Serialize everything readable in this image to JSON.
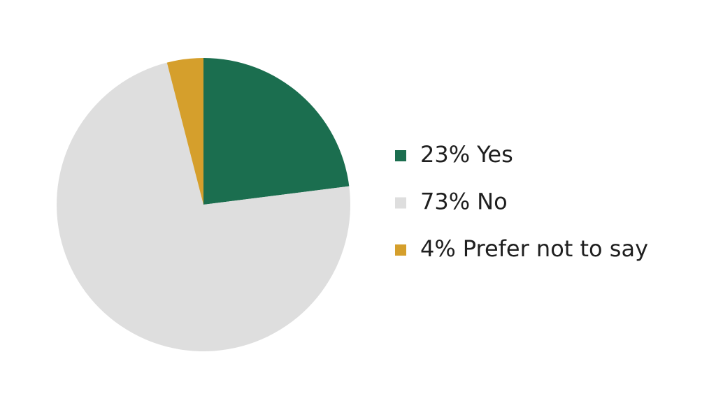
{
  "chart_data": {
    "type": "pie",
    "categories": [
      "Yes",
      "No",
      "Prefer not to say"
    ],
    "values": [
      23,
      73,
      4
    ],
    "value_labels": [
      "23%",
      "73%",
      "4%"
    ],
    "colors": [
      "#1b6e4f",
      "#dedede",
      "#d59f2c"
    ],
    "start_angle": 0,
    "direction": "clockwise",
    "legend": "right"
  }
}
